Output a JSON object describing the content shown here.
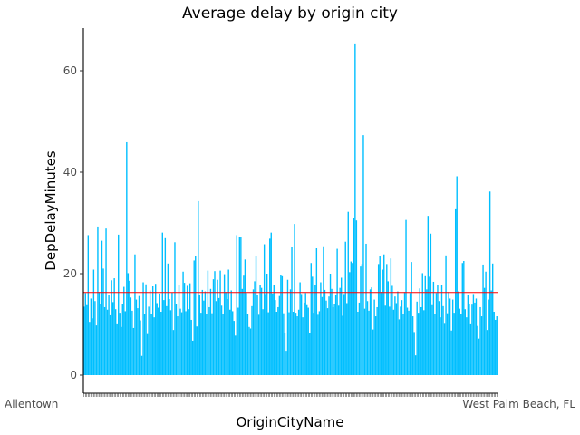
{
  "chart_data": {
    "type": "bar",
    "title": "Average delay by origin city",
    "xlabel": "OriginCityName",
    "ylabel": "DepDelayMinutes",
    "ylim": [
      0,
      68
    ],
    "yticks": [
      0,
      20,
      40,
      60
    ],
    "x_tick_label_first": "Allentown",
    "x_tick_label_last": "West Palm Beach, FL",
    "bar_color": "#00bfff",
    "reference_line": {
      "value": 16.3,
      "color": "#ff0000"
    },
    "grid": false,
    "legend": "none",
    "values": [
      13.5,
      16.2,
      13.8,
      27.6,
      10.5,
      15.1,
      11.2,
      20.8,
      14.6,
      9.8,
      29.3,
      16.4,
      14.1,
      26.5,
      21.0,
      13.4,
      28.9,
      12.9,
      15.8,
      11.8,
      18.7,
      14.4,
      19.1,
      13.0,
      10.2,
      27.7,
      12.3,
      9.5,
      14.1,
      17.4,
      12.6,
      45.9,
      20.1,
      18.6,
      15.3,
      12.7,
      9.3,
      23.8,
      14.9,
      13.2,
      15.6,
      10.8,
      3.8,
      18.3,
      12.0,
      17.9,
      8.1,
      13.5,
      16.7,
      12.1,
      17.5,
      11.4,
      18.0,
      14.2,
      13.3,
      16.1,
      12.5,
      28.1,
      14.8,
      27.0,
      13.6,
      22.0,
      15.0,
      12.8,
      16.3,
      8.9,
      26.2,
      14.0,
      11.6,
      17.8,
      13.1,
      12.4,
      20.4,
      18.2,
      12.6,
      17.6,
      13.0,
      18.1,
      10.9,
      6.8,
      22.6,
      23.4,
      9.6,
      34.3,
      15.9,
      12.3,
      16.8,
      14.7,
      16.5,
      12.1,
      20.6,
      13.4,
      17.0,
      12.2,
      18.9,
      20.5,
      14.6,
      18.8,
      15.2,
      20.6,
      13.7,
      12.0,
      19.9,
      16.4,
      15.0,
      20.8,
      12.9,
      16.7,
      12.6,
      10.7,
      7.8,
      27.6,
      13.3,
      27.3,
      27.2,
      17.0,
      19.6,
      22.8,
      16.2,
      12.0,
      9.5,
      9.2,
      13.6,
      16.9,
      18.5,
      23.4,
      15.8,
      11.9,
      17.8,
      17.2,
      13.0,
      25.8,
      16.0,
      20.0,
      12.4,
      26.9,
      28.1,
      16.1,
      17.7,
      14.8,
      12.5,
      13.4,
      15.6,
      19.7,
      19.5,
      12.2,
      8.3,
      4.8,
      18.8,
      12.4,
      16.9,
      25.2,
      12.5,
      29.8,
      12.3,
      11.6,
      12.9,
      18.3,
      16.0,
      11.4,
      14.3,
      16.2,
      13.8,
      13.3,
      8.3,
      22.1,
      19.4,
      12.3,
      17.7,
      25.0,
      11.9,
      12.6,
      18.3,
      15.4,
      25.4,
      16.8,
      14.7,
      13.2,
      15.5,
      20.0,
      17.0,
      13.4,
      14.1,
      15.9,
      24.9,
      13.7,
      17.2,
      19.2,
      11.7,
      16.0,
      26.3,
      14.2,
      32.2,
      20.3,
      22.4,
      22.1,
      30.9,
      65.2,
      30.5,
      12.5,
      14.3,
      21.4,
      21.9,
      47.3,
      13.1,
      25.9,
      14.6,
      12.7,
      16.9,
      17.3,
      9.0,
      14.9,
      11.6,
      13.4,
      21.9,
      23.5,
      16.4,
      20.8,
      23.8,
      13.7,
      21.9,
      18.5,
      13.5,
      23.0,
      17.6,
      12.9,
      15.5,
      14.2,
      16.5,
      11.0,
      13.5,
      14.8,
      12.1,
      16.4,
      30.6,
      13.3,
      12.7,
      16.2,
      22.3,
      11.6,
      8.5,
      3.9,
      14.5,
      12.3,
      17.1,
      13.4,
      20.1,
      12.8,
      19.5,
      16.9,
      31.4,
      19.4,
      27.9,
      13.8,
      18.4,
      12.1,
      16.2,
      17.8,
      14.6,
      11.4,
      17.7,
      13.6,
      10.3,
      23.6,
      12.2,
      16.4,
      15.1,
      8.8,
      14.9,
      12.3,
      32.7,
      39.2,
      16.5,
      13.1,
      12.1,
      22.1,
      22.5,
      13.0,
      11.4,
      15.9,
      14.1,
      10.2,
      13.9,
      16.0,
      14.3,
      15.1,
      9.7,
      7.2,
      13.4,
      11.6,
      21.8,
      17.2,
      20.4,
      8.9,
      14.9,
      36.2,
      16.7,
      22.0,
      12.5,
      10.9,
      11.6
    ]
  }
}
